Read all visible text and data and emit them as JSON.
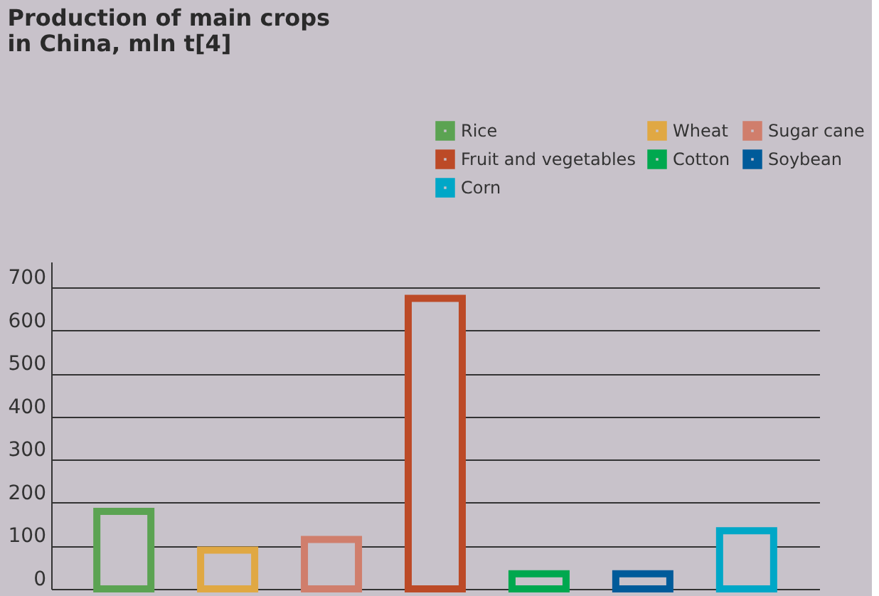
{
  "chart_data": {
    "type": "bar",
    "title": "Production of main crops in China, mln t[4]",
    "categories": [
      null,
      null,
      null,
      null,
      null,
      null,
      null
    ],
    "series": [
      {
        "name": "Rice",
        "color": "#5ba352",
        "values": [
          180,
          null,
          null,
          null,
          null,
          null,
          null
        ]
      },
      {
        "name": "Wheat",
        "color": "#e0a843",
        "values": [
          null,
          90,
          null,
          null,
          null,
          null,
          null
        ]
      },
      {
        "name": "Sugar cane",
        "color": "#d07e6c",
        "values": [
          null,
          null,
          115,
          null,
          null,
          null,
          null
        ]
      },
      {
        "name": "Fruit and vegetables",
        "color": "#bc4a27",
        "values": [
          null,
          null,
          null,
          675,
          null,
          null,
          null
        ]
      },
      {
        "name": "Cotton",
        "color": "#00a84f",
        "values": [
          null,
          null,
          null,
          null,
          35,
          null,
          null
        ]
      },
      {
        "name": "Soybean",
        "color": "#005b9a",
        "values": [
          null,
          null,
          null,
          null,
          null,
          35,
          null
        ]
      },
      {
        "name": "Corn",
        "color": "#00a7c7",
        "values": [
          null,
          null,
          null,
          null,
          null,
          null,
          135
        ]
      }
    ],
    "ylim": [
      0,
      760
    ],
    "yticks": [
      0,
      100,
      200,
      300,
      400,
      500,
      600,
      700
    ],
    "grid": "y",
    "legend": "top right"
  }
}
